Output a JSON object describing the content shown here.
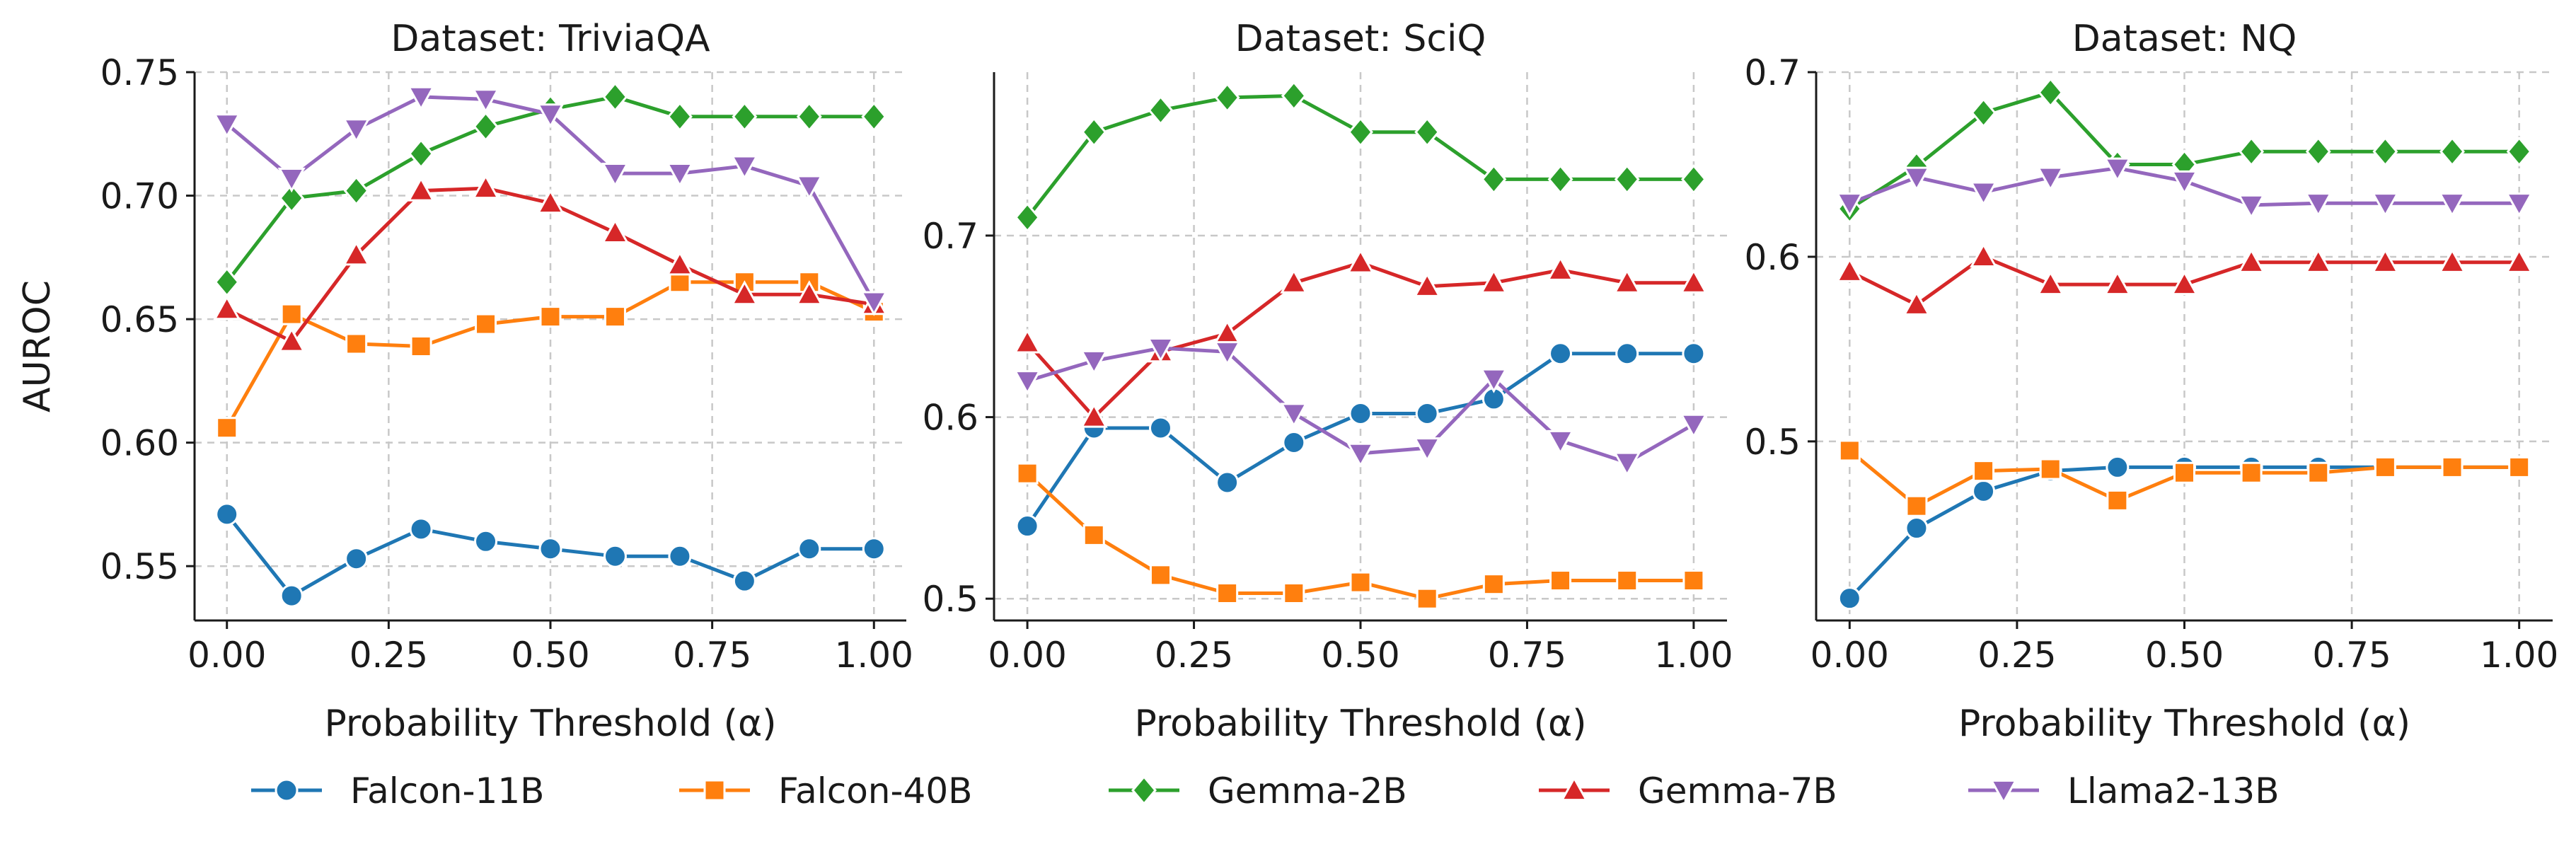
{
  "chart_data": [
    {
      "type": "line",
      "title": "Dataset: TriviaQA",
      "xlabel": "Probability Threshold (α)",
      "ylabel": "AUROC",
      "x": [
        0.0,
        0.1,
        0.2,
        0.3,
        0.4,
        0.5,
        0.6,
        0.7,
        0.8,
        0.9,
        1.0
      ],
      "xlim": [
        -0.05,
        1.05
      ],
      "ylim": [
        0.528,
        0.75
      ],
      "xticks": [
        0.0,
        0.25,
        0.5,
        0.75,
        1.0
      ],
      "xtick_labels": [
        "0.00",
        "0.25",
        "0.50",
        "0.75",
        "1.00"
      ],
      "yticks": [
        0.55,
        0.6,
        0.65,
        0.7,
        0.75
      ],
      "ytick_labels": [
        "0.55",
        "0.60",
        "0.65",
        "0.70",
        "0.75"
      ],
      "grid": true,
      "series": [
        {
          "name": "Falcon-11B",
          "values": [
            0.571,
            0.538,
            0.553,
            0.565,
            0.56,
            0.557,
            0.554,
            0.554,
            0.544,
            0.557,
            0.557
          ]
        },
        {
          "name": "Falcon-40B",
          "values": [
            0.606,
            0.652,
            0.64,
            0.639,
            0.648,
            0.651,
            0.651,
            0.665,
            0.665,
            0.665,
            0.653
          ]
        },
        {
          "name": "Gemma-2B",
          "values": [
            0.665,
            0.699,
            0.702,
            0.717,
            0.728,
            0.735,
            0.74,
            0.732,
            0.732,
            0.732,
            0.732
          ]
        },
        {
          "name": "Gemma-7B",
          "values": [
            0.654,
            0.641,
            0.676,
            0.702,
            0.703,
            0.697,
            0.685,
            0.672,
            0.66,
            0.66,
            0.656
          ]
        },
        {
          "name": "Llama2-13B",
          "values": [
            0.729,
            0.707,
            0.727,
            0.74,
            0.739,
            0.733,
            0.709,
            0.709,
            0.712,
            0.704,
            0.657
          ]
        }
      ]
    },
    {
      "type": "line",
      "title": "Dataset: SciQ",
      "xlabel": "Probability Threshold (α)",
      "ylabel": "",
      "x": [
        0.0,
        0.1,
        0.2,
        0.3,
        0.4,
        0.5,
        0.6,
        0.7,
        0.8,
        0.9,
        1.0
      ],
      "xlim": [
        -0.05,
        1.05
      ],
      "ylim": [
        0.488,
        0.79
      ],
      "xticks": [
        0.0,
        0.25,
        0.5,
        0.75,
        1.0
      ],
      "xtick_labels": [
        "0.00",
        "0.25",
        "0.50",
        "0.75",
        "1.00"
      ],
      "yticks": [
        0.5,
        0.6,
        0.7
      ],
      "ytick_labels": [
        "0.5",
        "0.6",
        "0.7"
      ],
      "grid": true,
      "series": [
        {
          "name": "Falcon-11B",
          "values": [
            0.54,
            0.594,
            0.594,
            0.564,
            0.586,
            0.602,
            0.602,
            0.61,
            0.635,
            0.635,
            0.635
          ]
        },
        {
          "name": "Falcon-40B",
          "values": [
            0.569,
            0.535,
            0.513,
            0.503,
            0.503,
            0.509,
            0.5,
            0.508,
            0.51,
            0.51,
            0.51
          ]
        },
        {
          "name": "Gemma-2B",
          "values": [
            0.71,
            0.757,
            0.769,
            0.776,
            0.777,
            0.757,
            0.757,
            0.731,
            0.731,
            0.731,
            0.731
          ]
        },
        {
          "name": "Gemma-7B",
          "values": [
            0.641,
            0.6,
            0.636,
            0.646,
            0.674,
            0.685,
            0.672,
            0.674,
            0.681,
            0.674,
            0.674
          ]
        },
        {
          "name": "Llama2-13B",
          "values": [
            0.62,
            0.631,
            0.638,
            0.636,
            0.602,
            0.58,
            0.583,
            0.621,
            0.587,
            0.575,
            0.596
          ]
        }
      ]
    },
    {
      "type": "line",
      "title": "Dataset: NQ",
      "xlabel": "Probability Threshold (α)",
      "ylabel": "",
      "x": [
        0.0,
        0.1,
        0.2,
        0.3,
        0.4,
        0.5,
        0.6,
        0.7,
        0.8,
        0.9,
        1.0
      ],
      "xlim": [
        -0.05,
        1.05
      ],
      "ylim": [
        0.403,
        0.7
      ],
      "xticks": [
        0.0,
        0.25,
        0.5,
        0.75,
        1.0
      ],
      "xtick_labels": [
        "0.00",
        "0.25",
        "0.50",
        "0.75",
        "1.00"
      ],
      "yticks": [
        0.5,
        0.6,
        0.7
      ],
      "ytick_labels": [
        "0.5",
        "0.6",
        "0.7"
      ],
      "grid": true,
      "series": [
        {
          "name": "Falcon-11B",
          "values": [
            0.415,
            0.453,
            0.473,
            0.484,
            0.486,
            0.486,
            0.486,
            0.486,
            0.486,
            0.486,
            0.486
          ]
        },
        {
          "name": "Falcon-40B",
          "values": [
            0.495,
            0.465,
            0.484,
            0.485,
            0.468,
            0.483,
            0.483,
            0.483,
            0.486,
            0.486,
            0.486
          ]
        },
        {
          "name": "Gemma-2B",
          "values": [
            0.626,
            0.649,
            0.678,
            0.689,
            0.65,
            0.65,
            0.657,
            0.657,
            0.657,
            0.657,
            0.657
          ]
        },
        {
          "name": "Gemma-7B",
          "values": [
            0.592,
            0.574,
            0.6,
            0.585,
            0.585,
            0.585,
            0.597,
            0.597,
            0.597,
            0.597,
            0.597
          ]
        },
        {
          "name": "Llama2-13B",
          "values": [
            0.629,
            0.643,
            0.635,
            0.643,
            0.648,
            0.641,
            0.628,
            0.629,
            0.629,
            0.629,
            0.629
          ]
        }
      ]
    }
  ],
  "legend": {
    "placement": "bottom-center",
    "entries": [
      {
        "name": "Falcon-11B",
        "color": "#1f77b4",
        "marker": "circle"
      },
      {
        "name": "Falcon-40B",
        "color": "#ff7f0e",
        "marker": "square"
      },
      {
        "name": "Gemma-2B",
        "color": "#2ca02c",
        "marker": "diamond"
      },
      {
        "name": "Gemma-7B",
        "color": "#d62728",
        "marker": "triangle-up"
      },
      {
        "name": "Llama2-13B",
        "color": "#9467bd",
        "marker": "triangle-down"
      }
    ]
  }
}
